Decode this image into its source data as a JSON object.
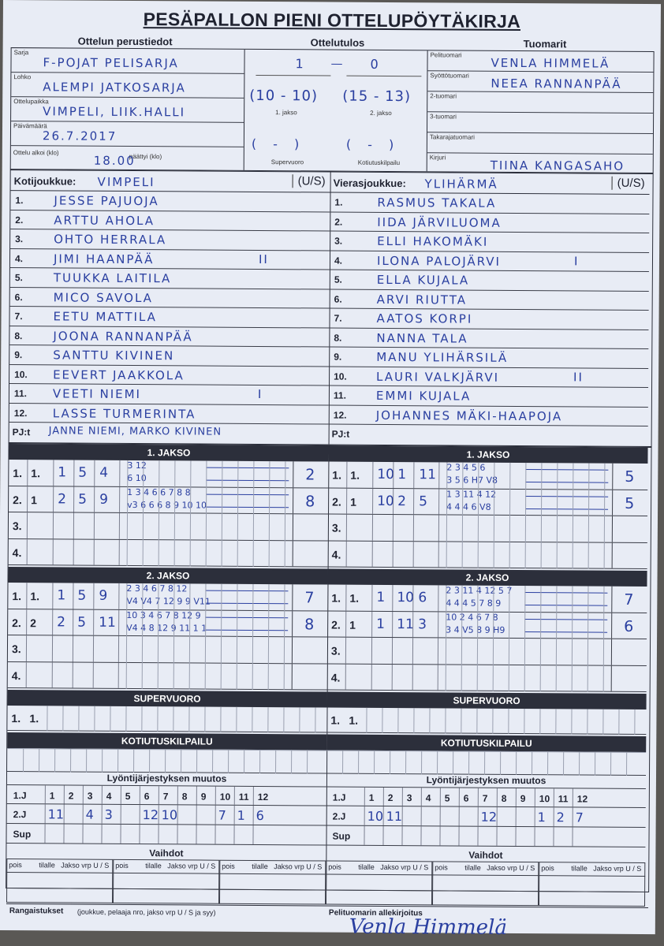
{
  "title": "PESÄPALLON PIENI OTTELUPÖYTÄKIRJA",
  "sections": {
    "basic": "Ottelun perustiedot",
    "result": "Ottelutulos",
    "umpires": "Tuomarit"
  },
  "basic": [
    {
      "label": "Sarja",
      "value": "F-POJAT PELISARJA"
    },
    {
      "label": "Lohko",
      "value": "ALEMPI JATKOSARJA"
    },
    {
      "label": "Ottelupaikka",
      "value": "VIMPELI, LIIK.HALLI"
    },
    {
      "label": "Päivämäärä",
      "value": "26.7.2017"
    }
  ],
  "start": {
    "label": "Ottelu alkoi (klo)",
    "value": "18.00",
    "end_label": "päättyi (klo)",
    "end_value": ""
  },
  "result": {
    "home": "1",
    "away": "0",
    "p1": "(10 - 10)",
    "p2": "(15 - 13)",
    "p1_label": "1. jakso",
    "p2_label": "2. jakso",
    "sv": "(   -   )",
    "kk": "(   -   )",
    "sv_label": "Supervuoro",
    "kk_label": "Kotiutuskilpailu"
  },
  "umpires": [
    {
      "label": "Pelituomari",
      "value": "VENLA HIMMELÄ"
    },
    {
      "label": "Syöttötuomari",
      "value": "NEEA RANNANPÄÄ"
    },
    {
      "label": "2-tuomari",
      "value": ""
    },
    {
      "label": "3-tuomari",
      "value": ""
    },
    {
      "label": "Takarajatuomari",
      "value": ""
    },
    {
      "label": "Kirjuri",
      "value": "TIINA KANGASAHO"
    }
  ],
  "home": {
    "label": "Kotijoukkue:",
    "name": "VIMPELI",
    "us": "(U/S)",
    "us_circled": "S",
    "players": [
      "JESSE PAJUOJA",
      "ARTTU AHOLA",
      "OHTO HERRALA",
      "JIMI HAANPÄÄ",
      "TUUKKA LAITILA",
      "MICO SAVOLA",
      "EETU MATTILA",
      "JOONA RANNANPÄÄ",
      "SANTTU KIVINEN",
      "EEVERT JAAKKOLA",
      "VEETI NIEMI",
      "LASSE TURMERINTA"
    ],
    "marks": {
      "3": "II",
      "10": "I"
    },
    "pj_label": "PJ:t",
    "pj": "JANNE NIEMI, MARKO KIVINEN"
  },
  "away": {
    "label": "Vierasjoukkue:",
    "name": "YLIHÄRMÄ",
    "us": "(U/S)",
    "us_circled": "U",
    "players": [
      "RASMUS TAKALA",
      "IIDA JÄRVILUOMA",
      "ELLI HAKOMÄKI",
      "ILONA PALOJÄRVI",
      "ELLA KUJALA",
      "ARVI RIUTTA",
      "AATOS KORPI",
      "NANNA TALA",
      "MANU YLIHÄRSILÄ",
      "LAURI VALKJÄRVI",
      "EMMI KUJALA",
      "JOHANNES MÄKI-HAAPOJA"
    ],
    "marks": {
      "3": "I",
      "9": "II"
    },
    "pj_label": "PJ:t",
    "pj": ""
  },
  "periods": [
    {
      "title": "1. JAKSO",
      "home": [
        {
          "no": "1.",
          "c": [
            "1.",
            "1",
            "5",
            "4"
          ],
          "top": "3 12",
          "bot": "6 10",
          "runs": "2"
        },
        {
          "no": "2.",
          "c": [
            "1",
            "2",
            "5",
            "9"
          ],
          "top": "1 3 4 6 6 7 8 8",
          "bot": "v3 6 6 6 8 9 10 10",
          "runs": "8"
        },
        {
          "no": "3.",
          "c": [
            "",
            "",
            "",
            ""
          ],
          "top": "",
          "bot": "",
          "runs": ""
        },
        {
          "no": "4.",
          "c": [
            "",
            "",
            "",
            ""
          ],
          "top": "",
          "bot": "",
          "runs": ""
        }
      ],
      "away": [
        {
          "no": "1.",
          "c": [
            "1.",
            "10",
            "1",
            "11"
          ],
          "top": "2 3 4 5 6",
          "bot": "3 5 6 H7 V8",
          "runs": "5"
        },
        {
          "no": "2.",
          "c": [
            "1",
            "10",
            "2",
            "5"
          ],
          "top": "1 3 11 4 12",
          "bot": "4 4 4 6 V8",
          "runs": "5"
        },
        {
          "no": "3.",
          "c": [
            "",
            "",
            "",
            ""
          ],
          "top": "",
          "bot": "",
          "runs": ""
        },
        {
          "no": "4.",
          "c": [
            "",
            "",
            "",
            ""
          ],
          "top": "",
          "bot": "",
          "runs": ""
        }
      ]
    },
    {
      "title": "2. JAKSO",
      "home": [
        {
          "no": "1.",
          "c": [
            "1.",
            "1",
            "5",
            "9"
          ],
          "top": "2 3 4 6 7 8 12",
          "bot": "V4 V4 7 12 9 9 V11",
          "runs": "7"
        },
        {
          "no": "2.",
          "c": [
            "2",
            "2",
            "5",
            "11"
          ],
          "top": "10 3 4 6 7 8 12 9",
          "bot": "V4 4 8 12 9 11 1 1",
          "runs": "8"
        },
        {
          "no": "3.",
          "c": [
            "",
            "",
            "",
            ""
          ],
          "top": "",
          "bot": "",
          "runs": ""
        },
        {
          "no": "4.",
          "c": [
            "",
            "",
            "",
            ""
          ],
          "top": "",
          "bot": "",
          "runs": ""
        }
      ],
      "away": [
        {
          "no": "1.",
          "c": [
            "1.",
            "1",
            "10",
            "6"
          ],
          "top": "2 3 11 4 12 5 7",
          "bot": "4 4 4 5 7 8 9",
          "runs": "7"
        },
        {
          "no": "2.",
          "c": [
            "1",
            "1",
            "11",
            "3"
          ],
          "top": "10 2 4 6 7 8",
          "bot": "3 4 V5 8 9 H9",
          "runs": "6"
        },
        {
          "no": "3.",
          "c": [
            "",
            "",
            "",
            ""
          ],
          "top": "",
          "bot": "",
          "runs": ""
        },
        {
          "no": "4.",
          "c": [
            "",
            "",
            "",
            ""
          ],
          "top": "",
          "bot": "",
          "runs": ""
        }
      ]
    }
  ],
  "super": {
    "title": "SUPERVUORO",
    "row": "1.",
    "sub": "1."
  },
  "kk": {
    "title": "KOTIUTUSKILPAILU"
  },
  "order": {
    "title": "Lyöntijärjestyksen muutos",
    "rows": [
      "1.J",
      "2.J",
      "Sup"
    ],
    "cols": [
      "1",
      "2",
      "3",
      "4",
      "5",
      "6",
      "7",
      "8",
      "9",
      "10",
      "11",
      "12"
    ],
    "home2": [
      "11",
      "",
      "4",
      "3",
      "",
      "12",
      "10",
      "",
      "",
      "7",
      "1",
      "6"
    ],
    "away2": [
      "10",
      "11",
      "",
      "",
      "",
      "",
      "12",
      "",
      "",
      "1",
      "2",
      "7"
    ]
  },
  "subs": {
    "title": "Vaihdot",
    "h": [
      "pois",
      "tilalle",
      "Jakso vrp U / S"
    ]
  },
  "penalties": {
    "label": "Rangaistukset",
    "hint": "(joukkue, pelaaja nro, jakso vrp U / S ja syy)"
  },
  "signature": {
    "label": "Pelituomarin allekirjoitus",
    "value": "Venla Himmelä"
  },
  "colors": {
    "ink": "#2a3fa0",
    "paper": "#e8ecf5",
    "bar": "#2c2f3b"
  }
}
